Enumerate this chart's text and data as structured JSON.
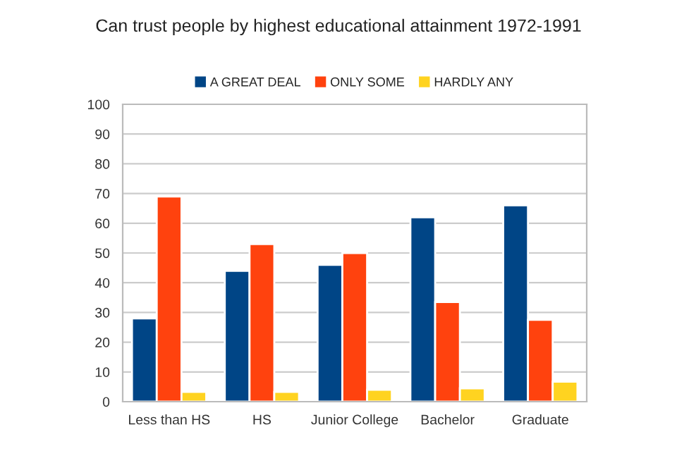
{
  "chart_data": {
    "type": "bar",
    "title": "Can trust people by highest educational attainment 1972-1991",
    "categories": [
      "Less than HS",
      "HS",
      "Junior College",
      "Bachelor",
      "Graduate"
    ],
    "series": [
      {
        "name": "A GREAT DEAL",
        "color": "#004586",
        "values": [
          28,
          44,
          46,
          62,
          66
        ]
      },
      {
        "name": "ONLY SOME",
        "color": "#ff420e",
        "values": [
          69,
          53,
          50,
          33.5,
          27.5
        ]
      },
      {
        "name": "HARDLY ANY",
        "color": "#ffd320",
        "values": [
          3.3,
          3.3,
          4,
          4.5,
          6.7
        ]
      }
    ],
    "ylim": [
      0,
      100
    ],
    "yticks": [
      0,
      10,
      20,
      30,
      40,
      50,
      60,
      70,
      80,
      90,
      100
    ],
    "grid": "y",
    "legend": "top"
  }
}
